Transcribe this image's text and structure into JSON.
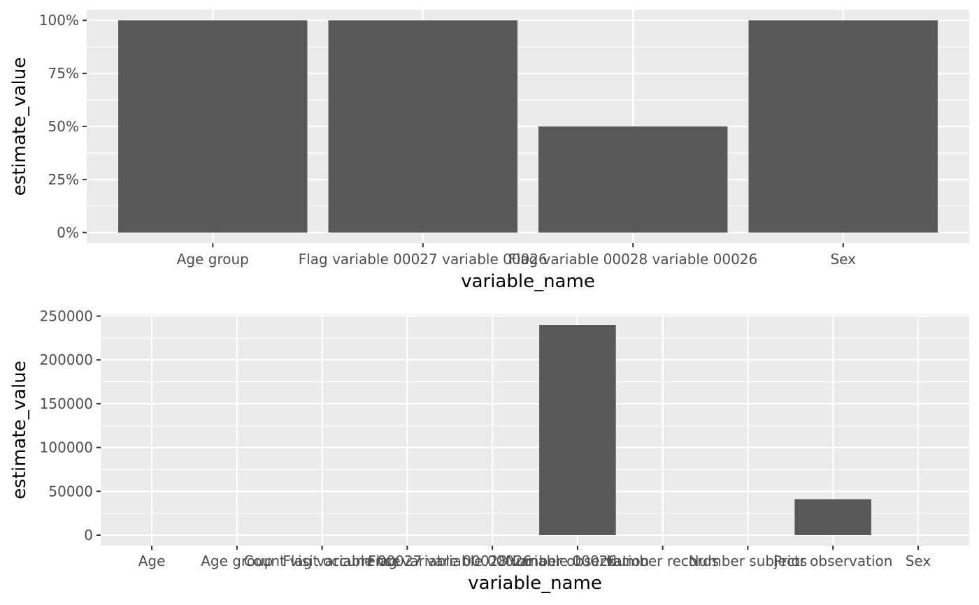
{
  "chart_data": [
    {
      "type": "bar",
      "categories": [
        "Age group",
        "Flag variable 00027 variable 00026",
        "Flag variable 00028 variable 00026",
        "Sex"
      ],
      "values": [
        1.0,
        1.0,
        0.5,
        1.0
      ],
      "y_tick_values": [
        0,
        0.25,
        0.5,
        0.75,
        1.0
      ],
      "y_tick_labels": [
        "0%",
        "25%",
        "50%",
        "75%",
        "100%"
      ],
      "ylim": [
        -0.05,
        1.05
      ],
      "xlabel": "variable_name",
      "ylabel": "estimate_value",
      "grid": true,
      "panel_color": "#ebebeb",
      "bar_color": "#595959"
    },
    {
      "type": "bar",
      "categories": [
        "Age",
        "Age group",
        "Count visit occurrence",
        "Flag variable 00027 variable 00026",
        "Flag variable 00028 variable 00026",
        "Number observation",
        "Number records",
        "Number subjects",
        "Prior observation",
        "Sex"
      ],
      "values": [
        null,
        null,
        null,
        null,
        null,
        240000,
        null,
        null,
        41000,
        null
      ],
      "y_tick_values": [
        0,
        50000,
        100000,
        150000,
        200000,
        250000
      ],
      "y_tick_labels": [
        "0",
        "50000",
        "100000",
        "150000",
        "200000",
        "250000"
      ],
      "ylim": [
        -12000,
        252000
      ],
      "xlabel": "variable_name",
      "ylabel": "estimate_value",
      "grid": true,
      "panel_color": "#ebebeb",
      "bar_color": "#595959"
    }
  ]
}
